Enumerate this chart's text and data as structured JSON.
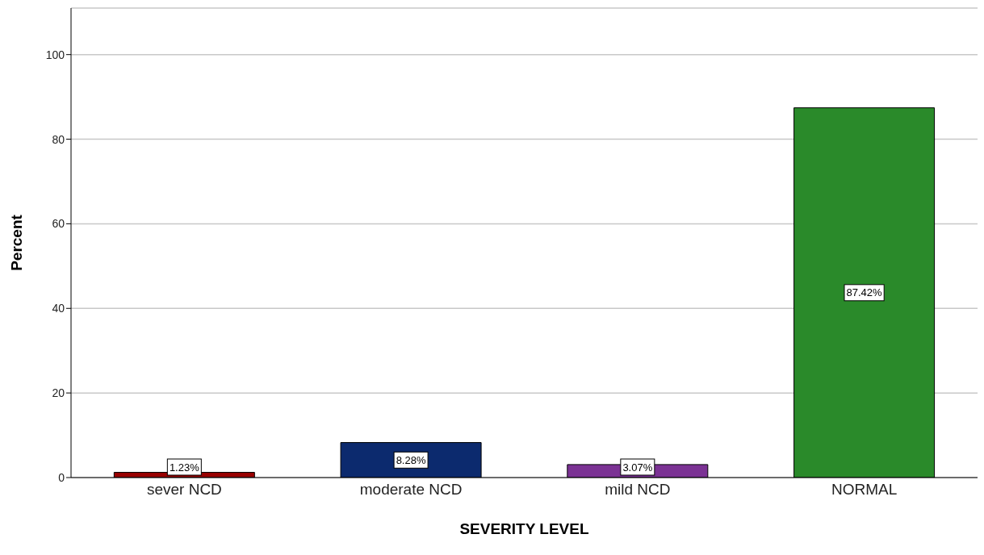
{
  "chart_data": {
    "type": "bar",
    "xlabel": "SEVERITY LEVEL",
    "ylabel": "Percent",
    "categories": [
      "sever NCD",
      "moderate NCD",
      "mild NCD",
      "NORMAL"
    ],
    "values": [
      1.23,
      8.28,
      3.07,
      87.42
    ],
    "colors": [
      "#990000",
      "#0c2a6e",
      "#7b3294",
      "#2a8a2a"
    ],
    "value_labels": [
      "1.23%",
      "8.28%",
      "3.07%",
      "87.42%"
    ],
    "ylim": [
      0,
      111
    ],
    "yticks": [
      0,
      20,
      40,
      60,
      80,
      100
    ],
    "grid": "y"
  }
}
